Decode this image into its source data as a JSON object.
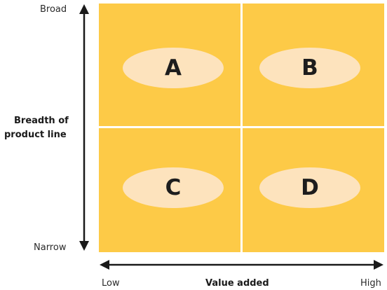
{
  "y_axis": {
    "title_line1": "Breadth of",
    "title_line2": "product line",
    "top_label": "Broad",
    "bottom_label": "Narrow"
  },
  "x_axis": {
    "title": "Value added",
    "left_label": "Low",
    "right_label": "High"
  },
  "quadrants": [
    {
      "letter": "A"
    },
    {
      "letter": "B"
    },
    {
      "letter": "C"
    },
    {
      "letter": "D"
    }
  ],
  "colors": {
    "quadrant_fill": "#fdca47",
    "ellipse_fill": "#fde3bd",
    "arrow": "#1a1a1a"
  }
}
